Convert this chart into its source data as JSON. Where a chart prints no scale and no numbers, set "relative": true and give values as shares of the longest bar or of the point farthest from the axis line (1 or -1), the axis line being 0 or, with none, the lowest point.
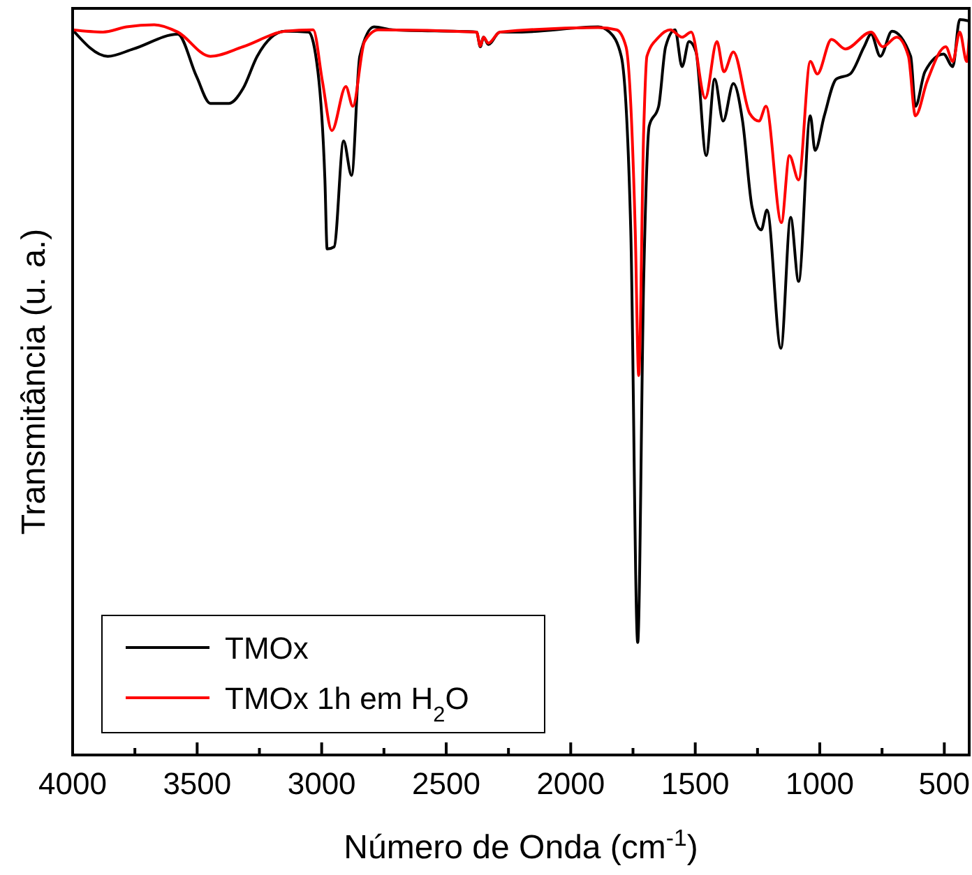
{
  "chart_data": {
    "type": "line",
    "xlabel": "Número de Onda (cm$^{-1}$)",
    "ylabel": "Transmitância (u. a.)",
    "relative": true,
    "legend": "bottom left",
    "grid": false,
    "line_style": "solid",
    "xlim": [
      4000,
      400
    ],
    "xticks": [
      4000,
      {
        "value": 3750,
        "label": null
      },
      3500,
      {
        "value": 3250,
        "label": null
      },
      3000,
      {
        "value": 2750,
        "label": null
      },
      2500,
      {
        "value": 2250,
        "label": null
      },
      2000,
      {
        "value": 1750,
        "label": null
      },
      1500,
      {
        "value": 1250,
        "label": null
      },
      1000,
      {
        "value": 750,
        "label": null
      },
      500
    ],
    "series": [
      {
        "name": "TMOx",
        "color": "#000000",
        "x": [
          4000,
          3859,
          3756,
          3578,
          3503,
          3447,
          3372,
          3316,
          3259,
          3147,
          3053,
          3015,
          2987,
          2978,
          2950,
          2912,
          2880,
          2847,
          2790,
          2715,
          2378,
          2363,
          2350,
          2331,
          2284,
          2209,
          1890,
          1844,
          1797,
          1759,
          1731,
          1707,
          1685,
          1647,
          1619,
          1581,
          1553,
          1525,
          1497,
          1456,
          1422,
          1388,
          1347,
          1310,
          1272,
          1235,
          1212,
          1156,
          1117,
          1085,
          1038,
          1019,
          982,
          934,
          878,
          822,
          794,
          757,
          710,
          635,
          616,
          578,
          503,
          466,
          438,
          400
        ],
        "values": [
          0.986,
          0.95,
          0.96,
          0.98,
          0.923,
          0.886,
          0.886,
          0.906,
          0.95,
          0.984,
          0.983,
          0.929,
          0.782,
          0.688,
          0.691,
          0.835,
          0.788,
          0.95,
          0.99,
          0.986,
          0.983,
          0.963,
          0.976,
          0.966,
          0.983,
          0.983,
          0.99,
          0.983,
          0.95,
          0.714,
          0.153,
          0.647,
          0.855,
          0.882,
          0.963,
          0.986,
          0.936,
          0.97,
          0.956,
          0.815,
          0.919,
          0.862,
          0.913,
          0.862,
          0.745,
          0.714,
          0.741,
          0.553,
          0.731,
          0.644,
          0.869,
          0.822,
          0.869,
          0.919,
          0.926,
          0.963,
          0.98,
          0.95,
          0.984,
          0.95,
          0.882,
          0.929,
          0.953,
          0.936,
          1,
          0.998
        ]
      },
      {
        "name": "TMOx 1h em H$_{2}$O",
        "color": "#ff0000",
        "x": [
          4000,
          3878,
          3784,
          3672,
          3578,
          3447,
          3316,
          3147,
          3034,
          2997,
          2959,
          2903,
          2875,
          2828,
          2772,
          2378,
          2363,
          2350,
          2331,
          2284,
          1890,
          1816,
          1778,
          1741,
          1727,
          1707,
          1694,
          1647,
          1600,
          1553,
          1516,
          1460,
          1413,
          1385,
          1347,
          1281,
          1244,
          1216,
          1154,
          1122,
          1085,
          1038,
          1010,
          953,
          897,
          794,
          747,
          691,
          644,
          616,
          569,
          494,
          466,
          438,
          410,
          400
        ],
        "values": [
          0.986,
          0.983,
          0.99,
          0.993,
          0.983,
          0.95,
          0.963,
          0.984,
          0.986,
          0.916,
          0.849,
          0.909,
          0.882,
          0.97,
          0.986,
          0.983,
          0.964,
          0.976,
          0.968,
          0.983,
          0.989,
          0.986,
          0.963,
          0.714,
          0.516,
          0.849,
          0.95,
          0.976,
          0.986,
          0.976,
          0.983,
          0.893,
          0.97,
          0.929,
          0.956,
          0.872,
          0.862,
          0.882,
          0.724,
          0.815,
          0.782,
          0.943,
          0.926,
          0.973,
          0.96,
          0.983,
          0.963,
          0.976,
          0.95,
          0.869,
          0.916,
          0.963,
          0.943,
          0.983,
          0.943,
          0.976
        ]
      }
    ]
  }
}
